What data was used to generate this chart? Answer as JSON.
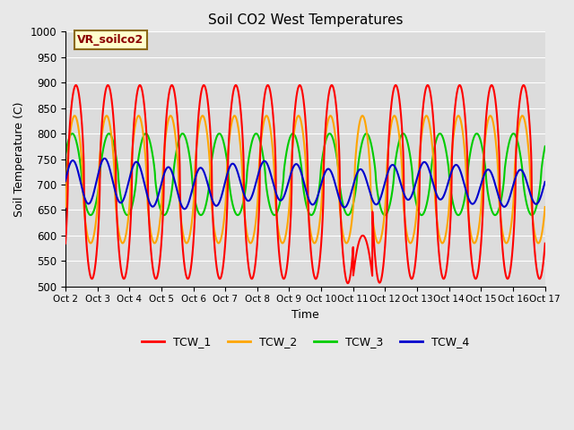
{
  "title": "Soil CO2 West Temperatures",
  "xlabel": "Time",
  "ylabel": "Soil Temperature (C)",
  "ylim": [
    500,
    1000
  ],
  "xlim": [
    0,
    15
  ],
  "fig_facecolor": "#e8e8e8",
  "plot_bg_color": "#dcdcdc",
  "annotation_text": "VR_soilco2",
  "annotation_bg": "#ffffcc",
  "annotation_border": "#8b6914",
  "annotation_text_color": "#8b0000",
  "tick_labels": [
    "Oct 2",
    "Oct 3",
    "Oct 4",
    "Oct 5",
    "Oct 6",
    "Oct 7",
    "Oct 8",
    "Oct 9",
    "Oct 10",
    "Oct 11",
    "Oct 12",
    "Oct 13",
    "Oct 14",
    "Oct 15",
    "Oct 16",
    "Oct 17"
  ],
  "series": {
    "TCW_1": {
      "color": "#ff0000",
      "linewidth": 1.5
    },
    "TCW_2": {
      "color": "#ffa500",
      "linewidth": 1.5
    },
    "TCW_3": {
      "color": "#00cc00",
      "linewidth": 1.5
    },
    "TCW_4": {
      "color": "#0000cc",
      "linewidth": 1.5
    }
  },
  "legend_entries": [
    "TCW_1",
    "TCW_2",
    "TCW_3",
    "TCW_4"
  ],
  "legend_colors": [
    "#ff0000",
    "#ffa500",
    "#00cc00",
    "#0000cc"
  ],
  "yticks": [
    500,
    550,
    600,
    650,
    700,
    750,
    800,
    850,
    900,
    950,
    1000
  ],
  "grid_color": "#ffffff",
  "grid_linewidth": 0.8
}
